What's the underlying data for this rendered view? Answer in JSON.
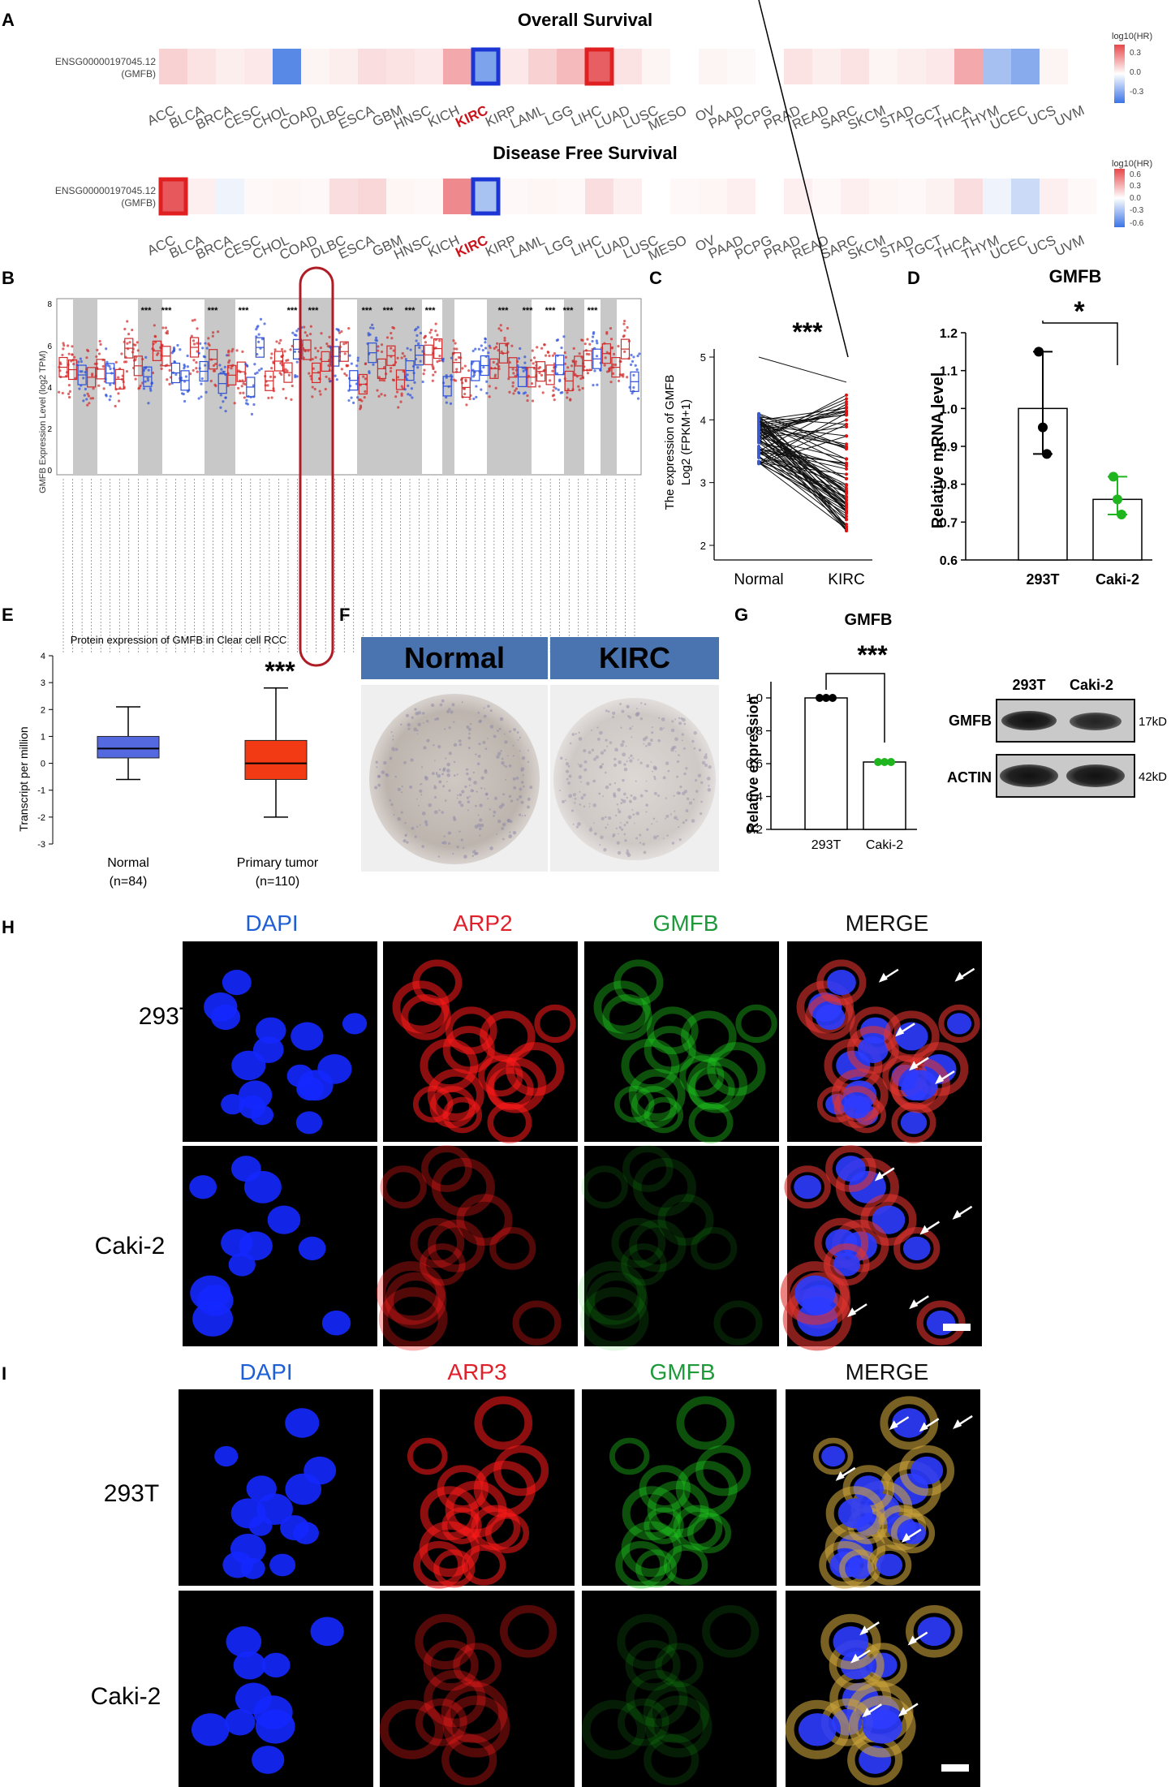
{
  "panel_letters": [
    "A",
    "B",
    "C",
    "D",
    "E",
    "F",
    "G",
    "H",
    "I"
  ],
  "panelA": {
    "os_title": "Overall Survival",
    "dfs_title": "Disease Free Survival",
    "gene_id": "ENSG00000197045.12",
    "gene_sym": "(GMFB)",
    "cancers": [
      "ACC",
      "BLCA",
      "BRCA",
      "CESC",
      "CHOL",
      "COAD",
      "DLBC",
      "ESCA",
      "GBM",
      "HNSC",
      "KICH",
      "KIRC",
      "KIRP",
      "LAML",
      "LGG",
      "LIHC",
      "LUAD",
      "LUSC",
      "MESO",
      "OV",
      "PAAD",
      "PCPG",
      "PRAD",
      "READ",
      "SARC",
      "SKCM",
      "STAD",
      "TGCT",
      "THCA",
      "THYM",
      "UCEC",
      "UCS",
      "UVM"
    ],
    "highlight_label": "KIRC",
    "os_legend": {
      "title": "log10(HR)",
      "ticks": [
        "0.3",
        "0.0",
        "-0.3"
      ]
    },
    "dfs_legend": {
      "title": "log10(HR)",
      "ticks": [
        "0.6",
        "0.3",
        "0.0",
        "-0.3",
        "-0.6"
      ]
    },
    "os_values": [
      0.08,
      0.05,
      0.03,
      0.04,
      -0.28,
      0.02,
      0.03,
      0.06,
      0.05,
      0.04,
      0.15,
      -0.22,
      0.04,
      0.08,
      0.12,
      0.28,
      0.05,
      0.02,
      0.0,
      0.02,
      0.01,
      0.0,
      0.05,
      0.03,
      0.05,
      0.02,
      0.03,
      0.04,
      0.15,
      -0.15,
      -0.2,
      0.02,
      0.0
    ],
    "dfs_values": [
      0.5,
      0.05,
      -0.05,
      0.02,
      0.03,
      0.02,
      0.1,
      0.12,
      0.03,
      0.02,
      0.35,
      -0.25,
      0.02,
      0.03,
      0.02,
      0.1,
      0.05,
      0.0,
      0.02,
      0.03,
      0.05,
      0.0,
      0.05,
      0.02,
      0.05,
      0.03,
      0.02,
      0.04,
      0.1,
      -0.05,
      -0.15,
      0.05,
      0.02
    ],
    "os_boxed": [
      "KIRC",
      "LIHC"
    ],
    "dfs_boxed": [
      "ACC",
      "KIRC"
    ],
    "colors": {
      "pos": "#e2373c",
      "neg": "#2f6ce0",
      "box_red": "#e02020",
      "box_blue": "#1c36d6",
      "kirc": "#c9141b"
    }
  },
  "panelB": {
    "ylabel": "GMFB Expression Level (log2 TPM)",
    "yticks": [
      "8",
      "6",
      "4",
      "2",
      "0"
    ],
    "stars": "***"
  },
  "panelC": {
    "ylabel1": "The expression of GMFB",
    "ylabel2": "Log2 (FPKM+1)",
    "stars": "***",
    "chart_data": {
      "type": "line",
      "categories": [
        "Normal",
        "KIRC"
      ],
      "ylim": [
        2,
        5
      ],
      "yticks": [
        "5",
        "4",
        "3",
        "2"
      ]
    }
  },
  "panelD": {
    "title": "GMFB",
    "stars": "*",
    "ylabel": "Relative mRNA level",
    "chart_data": {
      "type": "bar",
      "categories": [
        "293T",
        "Caki-2"
      ],
      "values": [
        1.0,
        0.76
      ],
      "points": [
        [
          1.15,
          0.95,
          0.88
        ],
        [
          0.82,
          0.76,
          0.72
        ]
      ],
      "ylim": [
        0.6,
        1.2
      ],
      "yticks": [
        "1.2",
        "1.1",
        "1.0",
        "0.9",
        "0.8",
        "0.7",
        "0.6"
      ]
    }
  },
  "panelE": {
    "title": "Protein expression of GMFB in Clear cell RCC",
    "ylabel": "Transcript per million",
    "stars": "***",
    "chart_data": {
      "type": "box",
      "categories": [
        "Normal",
        "Primary tumor"
      ],
      "counts": [
        "(n=84)",
        "(n=110)"
      ],
      "ylim": [
        -3,
        4
      ],
      "yticks": [
        "4",
        "3",
        "2",
        "1",
        "0",
        "-1",
        "-2",
        "-3"
      ],
      "boxes": [
        {
          "min": -0.6,
          "q1": 0.2,
          "median": 0.55,
          "q3": 1.0,
          "max": 2.1,
          "color": "#5468e0"
        },
        {
          "min": -2.0,
          "q1": -0.6,
          "median": 0.0,
          "q3": 0.85,
          "max": 2.8,
          "color": "#f23b14"
        }
      ]
    }
  },
  "panelF": {
    "headers": [
      "Normal",
      "KIRC"
    ]
  },
  "panelG": {
    "title": "GMFB",
    "stars": "***",
    "ylabel": "Relative expression",
    "chart_data": {
      "type": "bar",
      "categories": [
        "293T",
        "Caki-2"
      ],
      "values": [
        1.0,
        0.61
      ],
      "ylim": [
        0.2,
        1.0
      ],
      "yticks": [
        "1.0",
        "0.8",
        "0.6",
        "0.4",
        "0.2"
      ]
    },
    "blot": {
      "cols": [
        "293T",
        "Caki-2"
      ],
      "rows": [
        "GMFB",
        "ACTIN"
      ],
      "kd": [
        "17kD",
        "42kD"
      ]
    }
  },
  "panelH": {
    "headers": [
      "DAPI",
      "ARP2",
      "GMFB",
      "MERGE"
    ],
    "rows": [
      "293T",
      "Caki-2"
    ]
  },
  "panelI": {
    "headers": [
      "DAPI",
      "ARP3",
      "GMFB",
      "MERGE"
    ],
    "rows": [
      "293T",
      "Caki-2"
    ]
  },
  "header_colors": [
    "#1f5fd6",
    "#e0202a",
    "#1e9a3a",
    "#111111"
  ]
}
